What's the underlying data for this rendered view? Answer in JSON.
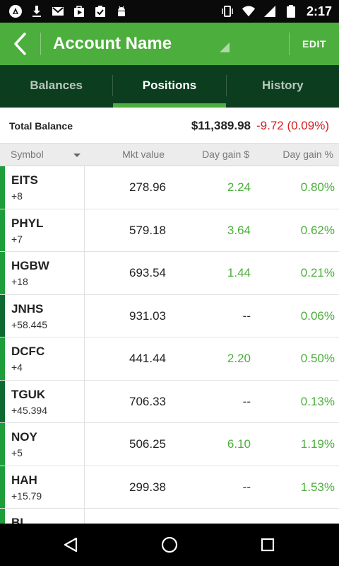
{
  "status_bar": {
    "time": "2:17",
    "left_icons": [
      "auto-update-icon",
      "download-icon",
      "gmail-icon",
      "play-store-icon",
      "checklist-icon",
      "android-icon"
    ],
    "right_icons": [
      "vibrate-icon",
      "wifi-icon",
      "signal-icon",
      "battery-icon"
    ]
  },
  "app_bar": {
    "title": "Account Name",
    "edit_label": "EDIT"
  },
  "tabs": [
    {
      "label": "Balances",
      "active": false
    },
    {
      "label": "Positions",
      "active": true
    },
    {
      "label": "History",
      "active": false
    }
  ],
  "summary": {
    "label": "Total Balance",
    "value": "$11,389.98",
    "change": "-9.72 (0.09%)"
  },
  "columns": {
    "symbol": "Symbol",
    "mkt_value": "Mkt value",
    "day_gain_dollar": "Day gain $",
    "day_gain_pct": "Day gain %"
  },
  "positions": [
    {
      "symbol": "EITS",
      "qty": "+8",
      "mkt": "278.96",
      "gain": "2.24",
      "pct": "0.80%"
    },
    {
      "symbol": "PHYL",
      "qty": "+7",
      "mkt": "579.18",
      "gain": "3.64",
      "pct": "0.62%"
    },
    {
      "symbol": "HGBW",
      "qty": "+18",
      "mkt": "693.54",
      "gain": "1.44",
      "pct": "0.21%"
    },
    {
      "symbol": "JNHS",
      "qty": "+58.445",
      "mkt": "931.03",
      "gain": "--",
      "pct": "0.06%"
    },
    {
      "symbol": "DCFC",
      "qty": "+4",
      "mkt": "441.44",
      "gain": "2.20",
      "pct": "0.50%"
    },
    {
      "symbol": "TGUK",
      "qty": "+45.394",
      "mkt": "706.33",
      "gain": "--",
      "pct": "0.13%"
    },
    {
      "symbol": "NOY",
      "qty": "+5",
      "mkt": "506.25",
      "gain": "6.10",
      "pct": "1.19%"
    },
    {
      "symbol": "HAH",
      "qty": "+15.79",
      "mkt": "299.38",
      "gain": "--",
      "pct": "1.53%"
    },
    {
      "symbol": "BL",
      "qty": "",
      "mkt": "",
      "gain": "",
      "pct": ""
    }
  ],
  "colors": {
    "accent_green": "#4cae3c",
    "dark_green": "#0c3d1f",
    "loss_red": "#d32020",
    "row_bar_colors": [
      "#1e9e3a",
      "#1e9e3a",
      "#1e9e3a",
      "#0e6a30",
      "#1e9e3a",
      "#0e6a30",
      "#1e9e3a",
      "#1e9e3a",
      "#1e9e3a"
    ]
  },
  "nav_bar": {
    "icons": [
      "back-triangle-icon",
      "home-circle-icon",
      "recents-square-icon"
    ]
  }
}
